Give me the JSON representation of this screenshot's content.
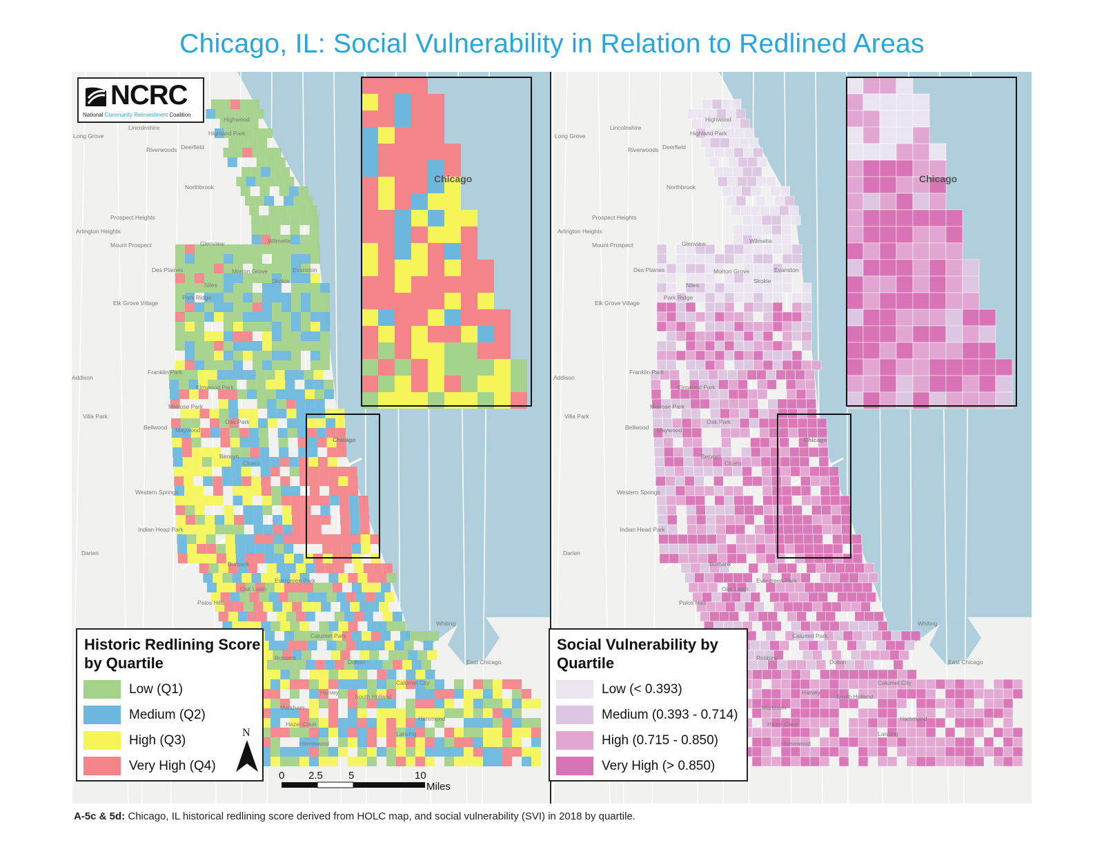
{
  "title": "Chicago, IL: Social Vulnerability in Relation to Redlined Areas",
  "logo": {
    "name": "NCRC",
    "subtitle_a": "National ",
    "subtitle_b": "Community Reinvestment",
    "subtitle_c": " Coalition"
  },
  "colors": {
    "water": "#aecfdb",
    "land": "#f1f1ef",
    "title": "#26a6dc",
    "low_q1": "#a3d28a",
    "medium_q2": "#6bb7dd",
    "high_q3": "#f5f55a",
    "very_high_q4": "#f3858a",
    "svi_low": "#ebe5f0",
    "svi_medium": "#dcc6e2",
    "svi_high": "#e2a6d2",
    "svi_very_high": "#d873b6"
  },
  "left_map": {
    "legend_title": "Historic Redlining Score by Quartile",
    "legend": [
      {
        "label": "Low (Q1)",
        "color": "#a3d28a"
      },
      {
        "label": "Medium (Q2)",
        "color": "#6bb7dd"
      },
      {
        "label": "High (Q3)",
        "color": "#f5f55a"
      },
      {
        "label": "Very High (Q4)",
        "color": "#f3858a"
      }
    ],
    "inset_city": "Chicago",
    "main_city": "Chicago"
  },
  "right_map": {
    "legend_title": "Social Vulnerability by Quartile",
    "legend": [
      {
        "label": "Low (< 0.393)",
        "color": "#ebe5f0"
      },
      {
        "label": "Medium (0.393 - 0.714)",
        "color": "#dcc6e2"
      },
      {
        "label": "High (0.715 - 0.850)",
        "color": "#e2a6d2"
      },
      {
        "label": "Very High (> 0.850)",
        "color": "#d873b6"
      }
    ],
    "inset_city": "Chicago",
    "main_city": "Chicago"
  },
  "place_names": [
    "Highwood",
    "Highland Park",
    "Lincolnshire",
    "Riverwoods",
    "Deerfield",
    "Long Grove",
    "Northbrook",
    "Prospect Heights",
    "Arlington Heights",
    "Mount Prospect",
    "Glenview",
    "Wilmette",
    "Des Plaines",
    "Morton Grove",
    "Skokie",
    "Evanston",
    "Niles",
    "Park Ridge",
    "Elk Grove Village",
    "Franklin Park",
    "Elmwood Park",
    "Addison",
    "Melrose Park",
    "Villa Park",
    "Bellwood",
    "Maywood",
    "Oak Park",
    "Berwyn",
    "Cicero",
    "Western Springs",
    "Indian Head Park",
    "Darien",
    "Burbank",
    "Oak Lawn",
    "Evergreen Park",
    "Palos Hills",
    "Calumet Park",
    "Dolton",
    "Robbins",
    "Harvey",
    "South Holland",
    "Markham",
    "Hazel Crest",
    "Homewood",
    "Lansing",
    "Hammond",
    "Calumet City",
    "Whiting",
    "East Chicago"
  ],
  "north_arrow": "N",
  "scale": {
    "ticks": [
      "0",
      "2.5",
      "5",
      "10"
    ],
    "unit": "Miles"
  },
  "caption": {
    "label": "A-5c & 5d:",
    "text": " Chicago, IL historical redlining score derived from HOLC map, and social vulnerability (SVI) in 2018 by quartile."
  }
}
